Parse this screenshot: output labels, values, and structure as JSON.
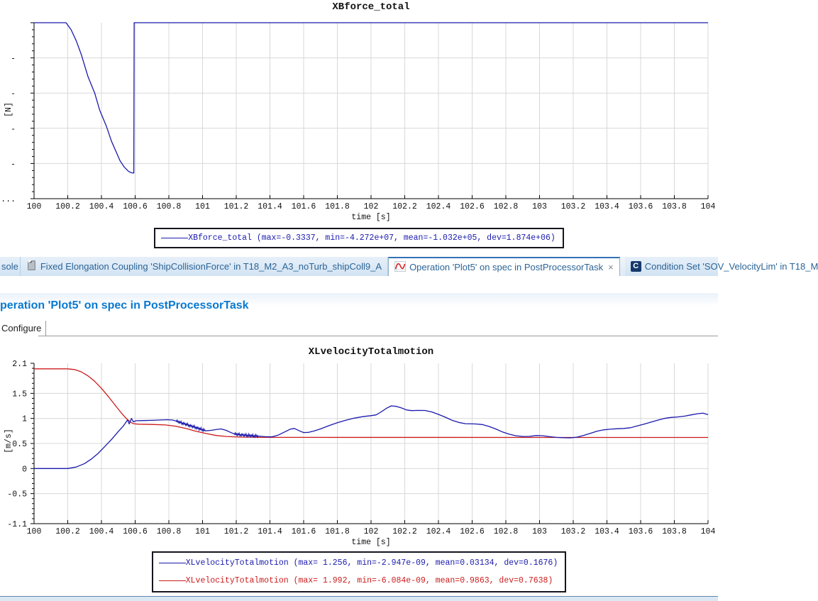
{
  "tabs": {
    "items": [
      {
        "label": "sole",
        "icon": "console-tab"
      },
      {
        "label": "Fixed Elongation Coupling 'ShipCollisionForce' in T18_M2_A3_noTurb_shipColl9_A",
        "icon": "notebook-icon"
      },
      {
        "label": "Operation 'Plot5' on spec in PostProcessorTask",
        "icon": "plot-icon",
        "close": "×",
        "active": true
      },
      {
        "label": "Condition Set 'SOV_VelocityLim' in T18_M",
        "icon": "condition-badge",
        "badge": "C"
      }
    ]
  },
  "header": {
    "title": "peration 'Plot5' on spec in PostProcessorTask"
  },
  "subtabs": {
    "configure": "Configure"
  },
  "colors": {
    "curve_blue": "#1a1aad",
    "curve_red": "#cc1b1b",
    "grid": "#d8d8d8",
    "axis": "#000000",
    "active_tab_accent": "#3273b5",
    "header_blue": "#0a79cf",
    "tab_text_blue": "#2c6496"
  },
  "chart_data": [
    {
      "type": "line",
      "title": "XBforce_total",
      "xlabel": "time [s]",
      "ylabel": "[N]",
      "xlim": [
        100,
        104
      ],
      "ylim": [
        -50000000,
        0
      ],
      "grid": true,
      "legend_position": "bottom",
      "xticks": {
        "values": [
          100,
          100.2,
          100.4,
          100.6,
          100.8,
          101,
          101.2,
          101.4,
          101.6,
          101.8,
          102,
          102.2,
          102.4,
          102.6,
          102.8,
          103,
          103.2,
          103.4,
          103.6,
          103.8,
          104
        ],
        "labels": [
          "100",
          "100.2",
          "100.4",
          "100.6",
          "100.8",
          "101",
          "101.2",
          "101.4",
          "101.6",
          "101.8",
          "102",
          "102.2",
          "102.4",
          "102.6",
          "102.8",
          "103",
          "103.2",
          "103.4",
          "103.6",
          "103.8",
          "104"
        ]
      },
      "yticks": {
        "values": [
          0,
          -10000000,
          -20000000,
          -30000000,
          -40000000,
          -50000000
        ],
        "labels": [
          "",
          "-",
          "-",
          "-",
          "-",
          "-..."
        ]
      },
      "yminor_step": 2000000,
      "series": [
        {
          "name": "XBforce_total",
          "color": "#1a1aad",
          "points": [
            [
              100,
              0
            ],
            [
              100.19,
              0
            ],
            [
              100.22,
              -2000000
            ],
            [
              100.25,
              -5100000
            ],
            [
              100.28,
              -9000000
            ],
            [
              100.32,
              -15300000
            ],
            [
              100.36,
              -20000000
            ],
            [
              100.39,
              -24900000
            ],
            [
              100.43,
              -29500000
            ],
            [
              100.46,
              -33700000
            ],
            [
              100.49,
              -37000000
            ],
            [
              100.51,
              -39200000
            ],
            [
              100.535,
              -41000000
            ],
            [
              100.56,
              -42200000
            ],
            [
              100.575,
              -42600000
            ],
            [
              100.588,
              -42720000
            ],
            [
              100.592,
              -42720000
            ],
            [
              100.594,
              0
            ],
            [
              104,
              0
            ]
          ]
        }
      ],
      "legend": [
        "XBforce_total (max=-0.3337, min=-4.272e+07, mean=-1.032e+05, dev=1.874e+06)"
      ]
    },
    {
      "type": "line",
      "title": "XLvelocityTotalmotion",
      "xlabel": "time [s]",
      "ylabel": "[m/s]",
      "xlim": [
        100,
        104
      ],
      "ylim": [
        -1.1,
        2.1
      ],
      "grid": true,
      "legend_position": "bottom",
      "xticks": {
        "values": [
          100,
          100.2,
          100.4,
          100.6,
          100.8,
          101,
          101.2,
          101.4,
          101.6,
          101.8,
          102,
          102.2,
          102.4,
          102.6,
          102.8,
          103,
          103.2,
          103.4,
          103.6,
          103.8,
          104
        ],
        "labels": [
          "100",
          "100.2",
          "100.4",
          "100.6",
          "100.8",
          "101",
          "101.2",
          "101.4",
          "101.6",
          "101.8",
          "102",
          "102.2",
          "102.4",
          "102.6",
          "102.8",
          "103",
          "103.2",
          "103.4",
          "103.6",
          "103.8",
          "104"
        ]
      },
      "yticks": {
        "values": [
          2.1,
          1.5,
          1,
          0.5,
          0,
          -0.5,
          -1.1
        ],
        "labels": [
          "2.1",
          "1.5",
          "1",
          "0.5",
          "0",
          "-0.5",
          "-1.1"
        ]
      },
      "yminor_step": 0.1,
      "series": [
        {
          "name": "XLvelocityTotalmotion",
          "color": "#1a1aad",
          "noise_bands": [
            [
              100.845,
              101.015
            ],
            [
              101.19,
              101.33
            ]
          ],
          "points": [
            [
              100,
              0
            ],
            [
              100.2,
              0
            ],
            [
              100.25,
              0.03
            ],
            [
              100.3,
              0.1
            ],
            [
              100.34,
              0.19
            ],
            [
              100.38,
              0.3
            ],
            [
              100.42,
              0.44
            ],
            [
              100.46,
              0.58
            ],
            [
              100.5,
              0.74
            ],
            [
              100.53,
              0.85
            ],
            [
              100.545,
              0.92
            ],
            [
              100.555,
              0.97
            ],
            [
              100.565,
              0.89
            ],
            [
              100.578,
              1.0
            ],
            [
              100.59,
              0.93
            ],
            [
              100.605,
              0.955
            ],
            [
              100.65,
              0.958
            ],
            [
              100.7,
              0.962
            ],
            [
              100.75,
              0.968
            ],
            [
              100.79,
              0.975
            ],
            [
              100.82,
              0.968
            ],
            [
              100.84,
              0.952
            ],
            [
              100.88,
              0.905
            ],
            [
              100.92,
              0.862
            ],
            [
              100.96,
              0.818
            ],
            [
              101.0,
              0.775
            ],
            [
              101.02,
              0.752
            ],
            [
              101.05,
              0.762
            ],
            [
              101.08,
              0.778
            ],
            [
              101.11,
              0.79
            ],
            [
              101.14,
              0.762
            ],
            [
              101.17,
              0.715
            ],
            [
              101.19,
              0.69
            ],
            [
              101.22,
              0.675
            ],
            [
              101.26,
              0.663
            ],
            [
              101.3,
              0.652
            ],
            [
              101.33,
              0.647
            ],
            [
              101.37,
              0.636
            ],
            [
              101.41,
              0.632
            ],
            [
              101.45,
              0.668
            ],
            [
              101.49,
              0.735
            ],
            [
              101.52,
              0.785
            ],
            [
              101.545,
              0.8
            ],
            [
              101.58,
              0.745
            ],
            [
              101.6,
              0.718
            ],
            [
              101.63,
              0.722
            ],
            [
              101.66,
              0.748
            ],
            [
              101.7,
              0.79
            ],
            [
              101.75,
              0.855
            ],
            [
              101.8,
              0.915
            ],
            [
              101.85,
              0.965
            ],
            [
              101.9,
              1.005
            ],
            [
              101.95,
              1.035
            ],
            [
              101.98,
              1.048
            ],
            [
              102.0,
              1.055
            ],
            [
              102.03,
              1.07
            ],
            [
              102.06,
              1.13
            ],
            [
              102.09,
              1.2
            ],
            [
              102.12,
              1.25
            ],
            [
              102.15,
              1.24
            ],
            [
              102.18,
              1.21
            ],
            [
              102.21,
              1.17
            ],
            [
              102.24,
              1.155
            ],
            [
              102.28,
              1.16
            ],
            [
              102.32,
              1.158
            ],
            [
              102.36,
              1.13
            ],
            [
              102.4,
              1.08
            ],
            [
              102.44,
              1.025
            ],
            [
              102.48,
              0.965
            ],
            [
              102.52,
              0.92
            ],
            [
              102.56,
              0.895
            ],
            [
              102.62,
              0.89
            ],
            [
              102.66,
              0.878
            ],
            [
              102.7,
              0.84
            ],
            [
              102.74,
              0.79
            ],
            [
              102.78,
              0.73
            ],
            [
              102.82,
              0.685
            ],
            [
              102.86,
              0.655
            ],
            [
              102.9,
              0.64
            ],
            [
              102.94,
              0.642
            ],
            [
              102.98,
              0.658
            ],
            [
              103.02,
              0.655
            ],
            [
              103.06,
              0.636
            ],
            [
              103.1,
              0.622
            ],
            [
              103.14,
              0.615
            ],
            [
              103.18,
              0.612
            ],
            [
              103.22,
              0.625
            ],
            [
              103.26,
              0.66
            ],
            [
              103.3,
              0.7
            ],
            [
              103.34,
              0.745
            ],
            [
              103.38,
              0.772
            ],
            [
              103.42,
              0.785
            ],
            [
              103.46,
              0.795
            ],
            [
              103.5,
              0.8
            ],
            [
              103.54,
              0.815
            ],
            [
              103.58,
              0.85
            ],
            [
              103.62,
              0.885
            ],
            [
              103.66,
              0.925
            ],
            [
              103.7,
              0.965
            ],
            [
              103.74,
              1.0
            ],
            [
              103.78,
              1.02
            ],
            [
              103.82,
              1.03
            ],
            [
              103.86,
              1.045
            ],
            [
              103.9,
              1.07
            ],
            [
              103.94,
              1.095
            ],
            [
              103.97,
              1.105
            ],
            [
              104,
              1.075
            ]
          ]
        },
        {
          "name": "XLvelocityTotalmotion",
          "color": "#cc1b1b",
          "points": [
            [
              100,
              1.99
            ],
            [
              100.2,
              1.99
            ],
            [
              100.24,
              1.975
            ],
            [
              100.28,
              1.93
            ],
            [
              100.32,
              1.85
            ],
            [
              100.36,
              1.74
            ],
            [
              100.4,
              1.6
            ],
            [
              100.44,
              1.44
            ],
            [
              100.48,
              1.27
            ],
            [
              100.52,
              1.1
            ],
            [
              100.55,
              0.99
            ],
            [
              100.575,
              0.92
            ],
            [
              100.59,
              0.895
            ],
            [
              100.62,
              0.885
            ],
            [
              100.7,
              0.88
            ],
            [
              100.78,
              0.87
            ],
            [
              100.84,
              0.845
            ],
            [
              100.9,
              0.8
            ],
            [
              100.96,
              0.745
            ],
            [
              101.02,
              0.7
            ],
            [
              101.08,
              0.66
            ],
            [
              101.14,
              0.64
            ],
            [
              101.22,
              0.628
            ],
            [
              101.35,
              0.622
            ],
            [
              104,
              0.62
            ]
          ]
        }
      ],
      "legend": [
        "XLvelocityTotalmotion (max= 1.256, min=-2.947e-09, mean=0.03134, dev=0.1676)",
        "XLvelocityTotalmotion (max= 1.992, min=-6.084e-09, mean=0.9863, dev=0.7638)"
      ]
    }
  ]
}
